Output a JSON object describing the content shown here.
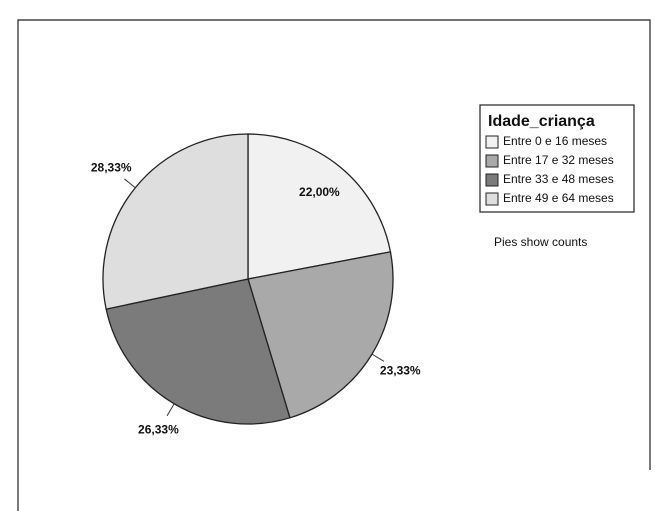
{
  "chart_data": {
    "type": "pie",
    "legend_title": "Idade_criança",
    "categories": [
      "Entre 0 e 16 meses",
      "Entre 17 e 32 meses",
      "Entre 33 e 48 meses",
      "Entre 49 e 64 meses"
    ],
    "values": [
      22.0,
      23.33,
      26.33,
      28.33
    ],
    "value_labels": [
      "22,00%",
      "23,33%",
      "26,33%",
      "28,33%"
    ],
    "colors": [
      "#f1f1f1",
      "#a9a9a9",
      "#7b7b7b",
      "#dedede"
    ],
    "annotation": "Pies show counts",
    "legend": "right"
  }
}
